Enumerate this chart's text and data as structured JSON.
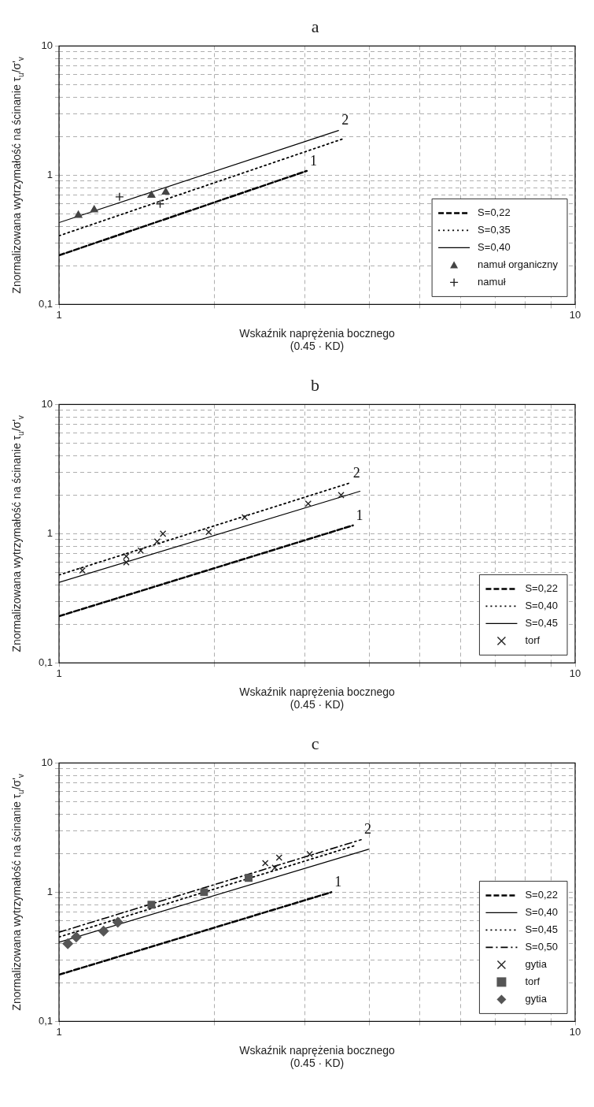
{
  "chart_data": [
    {
      "type": "scatter",
      "title": "a",
      "xlabel": "Wskaźnik naprężenia bocznego\n(0.45 · KD)",
      "ylabel": "Znormalizowana wytrzymałość na ścinanie τ$_{u}$/σ'$_{v}$",
      "log": "xy",
      "xlim": [
        1,
        10
      ],
      "ylim": [
        0.1,
        10
      ],
      "xticks": [
        {
          "value": 1,
          "label": "1"
        },
        {
          "value": 2,
          "label": null
        },
        {
          "value": 3,
          "label": null
        },
        {
          "value": 4,
          "label": null
        },
        {
          "value": 5,
          "label": null
        },
        {
          "value": 6,
          "label": null
        },
        {
          "value": 7,
          "label": null
        },
        {
          "value": 8,
          "label": null
        },
        {
          "value": 9,
          "label": null
        },
        {
          "value": 10,
          "label": "10"
        }
      ],
      "yticks": [
        {
          "value": 0.1,
          "label": "0,1"
        },
        {
          "value": 0.2,
          "label": null
        },
        {
          "value": 0.3,
          "label": null
        },
        {
          "value": 0.4,
          "label": null
        },
        {
          "value": 0.5,
          "label": null
        },
        {
          "value": 0.6,
          "label": null
        },
        {
          "value": 0.7,
          "label": null
        },
        {
          "value": 0.8,
          "label": null
        },
        {
          "value": 0.9,
          "label": null
        },
        {
          "value": 1,
          "label": "1"
        },
        {
          "value": 2,
          "label": null
        },
        {
          "value": 3,
          "label": null
        },
        {
          "value": 4,
          "label": null
        },
        {
          "value": 5,
          "label": null
        },
        {
          "value": 6,
          "label": null
        },
        {
          "value": 7,
          "label": null
        },
        {
          "value": 8,
          "label": null
        },
        {
          "value": 9,
          "label": null
        },
        {
          "value": 10,
          "label": "10"
        }
      ],
      "grid": true,
      "legend": "bottom right",
      "annotations": [
        {
          "text": "1",
          "x": 3.02,
          "y": 1.08
        },
        {
          "text": "2",
          "x": 3.48,
          "y": 2.22
        }
      ],
      "series": [
        {
          "name": "S=0,22",
          "type": "line",
          "line_style": "dashed",
          "color": "#000000",
          "x": [
            1,
            3.02
          ],
          "values": [
            0.24,
            1.08
          ]
        },
        {
          "name": "S=0,35",
          "type": "line",
          "line_style": "dotted",
          "color": "#000000",
          "x": [
            1,
            3.56
          ],
          "values": [
            0.34,
            1.92
          ]
        },
        {
          "name": "S=0,40",
          "type": "line",
          "line_style": "solid",
          "color": "#000000",
          "x": [
            1,
            3.48
          ],
          "values": [
            0.43,
            2.22
          ]
        },
        {
          "name": "namuł organiczny",
          "marker": "triangle",
          "color": "#444444",
          "x": [
            1.61,
            1.51,
            1.17,
            1.09
          ],
          "values": [
            0.74,
            0.7,
            0.54,
            0.49
          ]
        },
        {
          "name": "namuł",
          "marker": "plus",
          "color": "#222222",
          "x": [
            1.31,
            1.57
          ],
          "values": [
            0.68,
            0.6
          ]
        }
      ]
    },
    {
      "type": "scatter",
      "title": "b",
      "xlabel": "Wskaźnik naprężenia bocznego\n(0.45 · KD)",
      "ylabel": "Znormalizowana wytrzymałość na ścinanie τ$_{u}$/σ'$_{v}$",
      "log": "xy",
      "xlim": [
        1,
        10
      ],
      "ylim": [
        0.1,
        10
      ],
      "xticks": [
        {
          "value": 1,
          "label": "1"
        },
        {
          "value": 2,
          "label": null
        },
        {
          "value": 3,
          "label": null
        },
        {
          "value": 4,
          "label": null
        },
        {
          "value": 5,
          "label": null
        },
        {
          "value": 6,
          "label": null
        },
        {
          "value": 7,
          "label": null
        },
        {
          "value": 8,
          "label": null
        },
        {
          "value": 9,
          "label": null
        },
        {
          "value": 10,
          "label": "10"
        }
      ],
      "yticks": [
        {
          "value": 0.1,
          "label": "0,1"
        },
        {
          "value": 0.2,
          "label": null
        },
        {
          "value": 0.3,
          "label": null
        },
        {
          "value": 0.4,
          "label": null
        },
        {
          "value": 0.5,
          "label": null
        },
        {
          "value": 0.6,
          "label": null
        },
        {
          "value": 0.7,
          "label": null
        },
        {
          "value": 0.8,
          "label": null
        },
        {
          "value": 0.9,
          "label": null
        },
        {
          "value": 1,
          "label": "1"
        },
        {
          "value": 2,
          "label": null
        },
        {
          "value": 3,
          "label": null
        },
        {
          "value": 4,
          "label": null
        },
        {
          "value": 5,
          "label": null
        },
        {
          "value": 6,
          "label": null
        },
        {
          "value": 7,
          "label": null
        },
        {
          "value": 8,
          "label": null
        },
        {
          "value": 9,
          "label": null
        },
        {
          "value": 10,
          "label": "10"
        }
      ],
      "grid": true,
      "legend": "bottom right",
      "annotations": [
        {
          "text": "1",
          "x": 3.71,
          "y": 1.16
        },
        {
          "text": "2",
          "x": 3.66,
          "y": 2.47
        }
      ],
      "series": [
        {
          "name": "S=0,22",
          "type": "line",
          "line_style": "dashed",
          "color": "#000000",
          "x": [
            1,
            3.71
          ],
          "values": [
            0.23,
            1.16
          ]
        },
        {
          "name": "S=0,40",
          "type": "line",
          "line_style": "dotted",
          "color": "#000000",
          "x": [
            1,
            3.66
          ],
          "values": [
            0.48,
            2.47
          ]
        },
        {
          "name": "S=0,45",
          "type": "line",
          "line_style": "solid",
          "color": "#000000",
          "x": [
            1,
            3.83
          ],
          "values": [
            0.42,
            2.13
          ]
        },
        {
          "name": "torf",
          "marker": "cross",
          "color": "#222222",
          "x": [
            3.52,
            3.04,
            2.29,
            1.95,
            1.59,
            1.55,
            1.44,
            1.35,
            1.35,
            1.11
          ],
          "values": [
            1.99,
            1.71,
            1.34,
            1.03,
            1.0,
            0.87,
            0.74,
            0.67,
            0.6,
            0.52
          ]
        }
      ]
    },
    {
      "type": "scatter",
      "title": "c",
      "xlabel": "Wskaźnik naprężenia bocznego\n(0.45 · KD)",
      "ylabel": "Znormalizowana wytrzymałość na ścinanie τ$_{u}$/σ'$_{v}$",
      "log": "xy",
      "xlim": [
        1,
        10
      ],
      "ylim": [
        0.1,
        10
      ],
      "xticks": [
        {
          "value": 1,
          "label": "1"
        },
        {
          "value": 2,
          "label": null
        },
        {
          "value": 3,
          "label": null
        },
        {
          "value": 4,
          "label": null
        },
        {
          "value": 5,
          "label": null
        },
        {
          "value": 6,
          "label": null
        },
        {
          "value": 7,
          "label": null
        },
        {
          "value": 8,
          "label": null
        },
        {
          "value": 9,
          "label": null
        },
        {
          "value": 10,
          "label": "10"
        }
      ],
      "yticks": [
        {
          "value": 0.1,
          "label": "0,1"
        },
        {
          "value": 0.2,
          "label": null
        },
        {
          "value": 0.3,
          "label": null
        },
        {
          "value": 0.4,
          "label": null
        },
        {
          "value": 0.5,
          "label": null
        },
        {
          "value": 0.6,
          "label": null
        },
        {
          "value": 0.7,
          "label": null
        },
        {
          "value": 0.8,
          "label": null
        },
        {
          "value": 0.9,
          "label": null
        },
        {
          "value": 1,
          "label": "1"
        },
        {
          "value": 2,
          "label": null
        },
        {
          "value": 3,
          "label": null
        },
        {
          "value": 4,
          "label": null
        },
        {
          "value": 5,
          "label": null
        },
        {
          "value": 6,
          "label": null
        },
        {
          "value": 7,
          "label": null
        },
        {
          "value": 8,
          "label": null
        },
        {
          "value": 9,
          "label": null
        },
        {
          "value": 10,
          "label": "10"
        }
      ],
      "grid": true,
      "legend": "bottom right",
      "annotations": [
        {
          "text": "1",
          "x": 3.37,
          "y": 1.0
        },
        {
          "text": "2",
          "x": 3.85,
          "y": 2.55
        }
      ],
      "series": [
        {
          "name": "S=0,22",
          "type": "line",
          "line_style": "dashed",
          "color": "#000000",
          "x": [
            1,
            3.37
          ],
          "values": [
            0.23,
            1.0
          ]
        },
        {
          "name": "S=0,40",
          "type": "line",
          "line_style": "solid",
          "color": "#000000",
          "x": [
            1,
            3.98
          ],
          "values": [
            0.41,
            2.15
          ]
        },
        {
          "name": "S=0,45",
          "type": "line",
          "line_style": "dotted",
          "color": "#000000",
          "x": [
            1,
            3.75
          ],
          "values": [
            0.45,
            2.3
          ]
        },
        {
          "name": "S=0,50",
          "type": "line",
          "line_style": "dashdot",
          "color": "#000000",
          "x": [
            1,
            3.85
          ],
          "values": [
            0.49,
            2.55
          ]
        },
        {
          "name": "gytia",
          "marker": "cross",
          "color": "#222222",
          "x": [
            3.06,
            2.67,
            2.51,
            2.62
          ],
          "values": [
            1.97,
            1.85,
            1.68,
            1.55
          ]
        },
        {
          "name": "torf",
          "marker": "square",
          "color": "#555555",
          "x": [
            2.33,
            1.91,
            1.51
          ],
          "values": [
            1.29,
            1.0,
            0.8
          ]
        },
        {
          "name": "gytia",
          "marker": "diamond",
          "color": "#555555",
          "x": [
            1.3,
            1.22,
            1.08,
            1.04
          ],
          "values": [
            0.585,
            0.5,
            0.45,
            0.4
          ]
        }
      ]
    }
  ]
}
